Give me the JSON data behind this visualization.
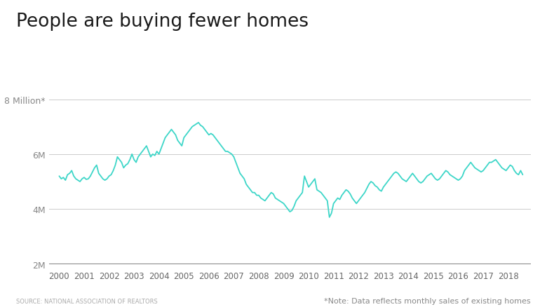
{
  "title": "People are buying fewer homes",
  "source_text": "SOURCE: NATIONAL ASSOCIATION OF REALTORS",
  "note_text": "*Note: Data reflects monthly sales of existing homes",
  "line_color": "#3DD6C8",
  "background_color": "#ffffff",
  "ylim": [
    2000000,
    8500000
  ],
  "yticks": [
    2000000,
    4000000,
    6000000,
    8000000
  ],
  "x_start_year": 2000,
  "x_end_year": 2019,
  "title_fontsize": 19,
  "monthly_data": [
    5200000,
    5100000,
    5150000,
    5050000,
    5250000,
    5300000,
    5400000,
    5200000,
    5100000,
    5050000,
    5000000,
    5100000,
    5150000,
    5080000,
    5100000,
    5200000,
    5350000,
    5500000,
    5600000,
    5300000,
    5200000,
    5100000,
    5050000,
    5100000,
    5200000,
    5250000,
    5400000,
    5600000,
    5900000,
    5800000,
    5700000,
    5500000,
    5600000,
    5650000,
    5800000,
    6000000,
    5800000,
    5700000,
    5900000,
    6000000,
    6100000,
    6200000,
    6300000,
    6100000,
    5900000,
    6000000,
    5950000,
    6100000,
    6000000,
    6200000,
    6400000,
    6600000,
    6700000,
    6800000,
    6900000,
    6800000,
    6700000,
    6500000,
    6400000,
    6300000,
    6600000,
    6700000,
    6800000,
    6900000,
    7000000,
    7050000,
    7100000,
    7150000,
    7050000,
    7000000,
    6900000,
    6800000,
    6700000,
    6750000,
    6700000,
    6600000,
    6500000,
    6400000,
    6300000,
    6200000,
    6100000,
    6100000,
    6050000,
    6000000,
    5900000,
    5700000,
    5500000,
    5300000,
    5200000,
    5100000,
    4900000,
    4800000,
    4700000,
    4600000,
    4600000,
    4500000,
    4500000,
    4400000,
    4350000,
    4300000,
    4400000,
    4500000,
    4600000,
    4550000,
    4400000,
    4350000,
    4300000,
    4250000,
    4200000,
    4100000,
    4000000,
    3900000,
    3950000,
    4100000,
    4300000,
    4400000,
    4500000,
    4600000,
    5200000,
    5000000,
    4800000,
    4900000,
    5000000,
    5100000,
    4700000,
    4650000,
    4600000,
    4500000,
    4400000,
    4300000,
    3700000,
    3850000,
    4200000,
    4300000,
    4400000,
    4350000,
    4500000,
    4600000,
    4700000,
    4650000,
    4550000,
    4400000,
    4300000,
    4200000,
    4300000,
    4400000,
    4500000,
    4600000,
    4750000,
    4900000,
    5000000,
    4950000,
    4850000,
    4800000,
    4700000,
    4650000,
    4800000,
    4900000,
    5000000,
    5100000,
    5200000,
    5300000,
    5350000,
    5300000,
    5200000,
    5100000,
    5050000,
    5000000,
    5100000,
    5200000,
    5300000,
    5200000,
    5100000,
    5000000,
    4950000,
    5000000,
    5100000,
    5200000,
    5250000,
    5300000,
    5200000,
    5100000,
    5050000,
    5100000,
    5200000,
    5300000,
    5400000,
    5350000,
    5250000,
    5200000,
    5150000,
    5100000,
    5050000,
    5100000,
    5200000,
    5400000,
    5500000,
    5600000,
    5700000,
    5600000,
    5500000,
    5450000,
    5400000,
    5350000,
    5400000,
    5500000,
    5600000,
    5700000,
    5700000,
    5750000,
    5800000,
    5700000,
    5600000,
    5500000,
    5450000,
    5400000,
    5500000,
    5600000,
    5550000,
    5400000,
    5300000,
    5250000,
    5400000,
    5250000
  ]
}
